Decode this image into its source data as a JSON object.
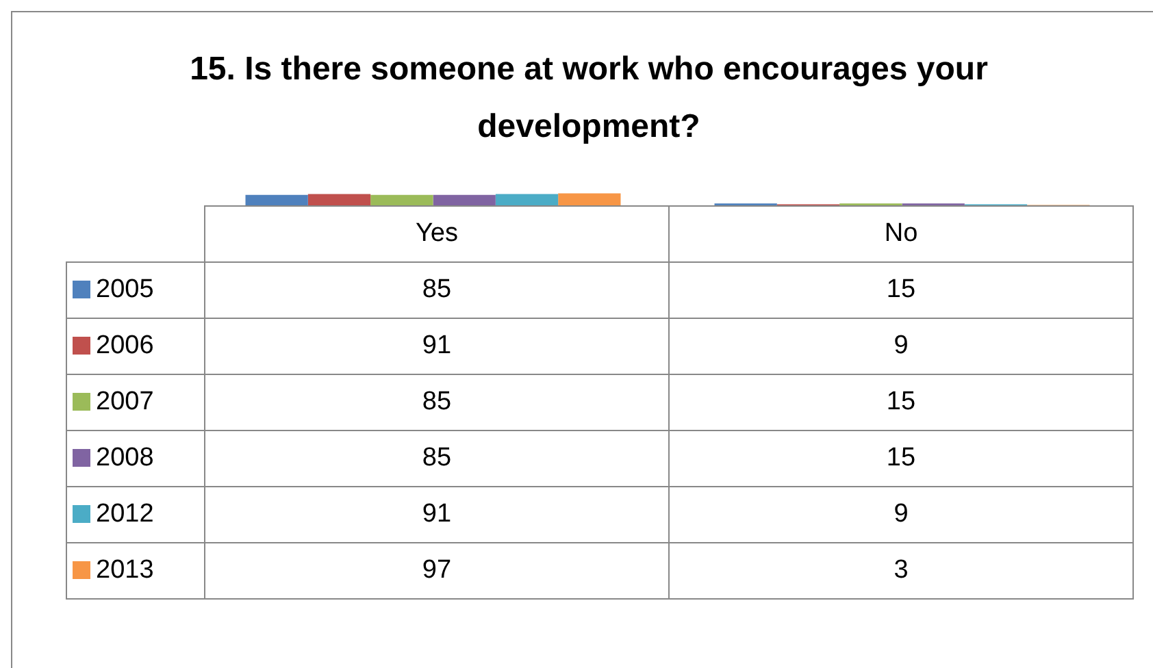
{
  "chart_data": {
    "type": "bar",
    "title": "15. Is there someone at work who encourages your development?",
    "categories": [
      "Yes",
      "No"
    ],
    "series": [
      {
        "name": "2005",
        "color": "#4f81bd",
        "values": [
          85,
          15
        ]
      },
      {
        "name": "2006",
        "color": "#c0504d",
        "values": [
          91,
          9
        ]
      },
      {
        "name": "2007",
        "color": "#9bbb59",
        "values": [
          85,
          15
        ]
      },
      {
        "name": "2008",
        "color": "#8064a2",
        "values": [
          85,
          15
        ]
      },
      {
        "name": "2012",
        "color": "#4bacc6",
        "values": [
          91,
          9
        ]
      },
      {
        "name": "2013",
        "color": "#f79646",
        "values": [
          97,
          3
        ]
      }
    ],
    "data_labels": true,
    "legend": "bottom"
  }
}
